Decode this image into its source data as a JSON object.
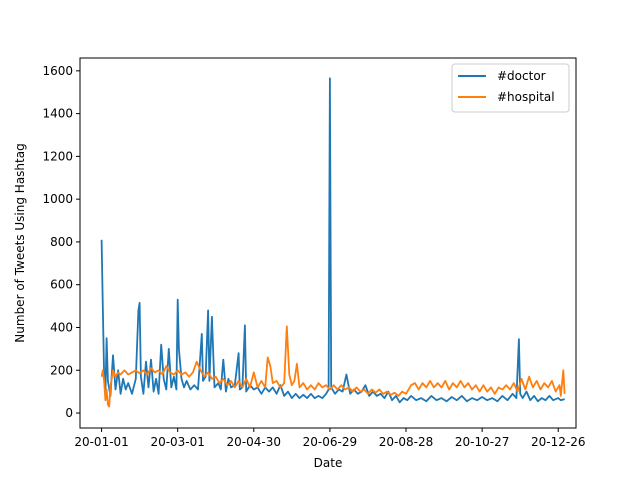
{
  "chart_data": {
    "type": "line",
    "title": "",
    "xlabel": "Date",
    "ylabel": "Number of Tweets Using Hashtag",
    "x_tick_labels": [
      "20-01-01",
      "20-03-01",
      "20-04-30",
      "20-06-29",
      "20-08-28",
      "20-10-27",
      "20-12-26"
    ],
    "y_ticks": [
      0,
      200,
      400,
      600,
      800,
      1000,
      1200,
      1400,
      1600
    ],
    "xlim": [
      "2019-12-15",
      "2021-01-09"
    ],
    "ylim": [
      -70,
      1660
    ],
    "grid": false,
    "legend": {
      "position": "top-right"
    },
    "series": [
      {
        "name": "#doctor",
        "color": "#1f77b4",
        "points": [
          [
            "2020-01-01",
            810
          ],
          [
            "2020-01-02",
            500
          ],
          [
            "2020-01-03",
            180
          ],
          [
            "2020-01-04",
            90
          ],
          [
            "2020-01-05",
            350
          ],
          [
            "2020-01-06",
            150
          ],
          [
            "2020-01-08",
            80
          ],
          [
            "2020-01-10",
            270
          ],
          [
            "2020-01-12",
            110
          ],
          [
            "2020-01-14",
            200
          ],
          [
            "2020-01-16",
            90
          ],
          [
            "2020-01-18",
            160
          ],
          [
            "2020-01-20",
            110
          ],
          [
            "2020-01-22",
            140
          ],
          [
            "2020-01-25",
            90
          ],
          [
            "2020-01-28",
            160
          ],
          [
            "2020-01-30",
            480
          ],
          [
            "2020-01-31",
            515
          ],
          [
            "2020-02-01",
            170
          ],
          [
            "2020-02-03",
            90
          ],
          [
            "2020-02-05",
            240
          ],
          [
            "2020-02-07",
            120
          ],
          [
            "2020-02-09",
            250
          ],
          [
            "2020-02-11",
            100
          ],
          [
            "2020-02-13",
            160
          ],
          [
            "2020-02-15",
            90
          ],
          [
            "2020-02-17",
            320
          ],
          [
            "2020-02-19",
            160
          ],
          [
            "2020-02-21",
            110
          ],
          [
            "2020-02-23",
            300
          ],
          [
            "2020-02-25",
            120
          ],
          [
            "2020-02-27",
            170
          ],
          [
            "2020-02-29",
            110
          ],
          [
            "2020-03-01",
            530
          ],
          [
            "2020-03-02",
            300
          ],
          [
            "2020-03-04",
            160
          ],
          [
            "2020-03-06",
            120
          ],
          [
            "2020-03-08",
            150
          ],
          [
            "2020-03-11",
            110
          ],
          [
            "2020-03-14",
            130
          ],
          [
            "2020-03-17",
            110
          ],
          [
            "2020-03-20",
            370
          ],
          [
            "2020-03-21",
            150
          ],
          [
            "2020-03-23",
            170
          ],
          [
            "2020-03-25",
            480
          ],
          [
            "2020-03-26",
            150
          ],
          [
            "2020-03-28",
            450
          ],
          [
            "2020-03-30",
            120
          ],
          [
            "2020-04-02",
            140
          ],
          [
            "2020-04-04",
            110
          ],
          [
            "2020-04-06",
            250
          ],
          [
            "2020-04-08",
            100
          ],
          [
            "2020-04-10",
            160
          ],
          [
            "2020-04-12",
            120
          ],
          [
            "2020-04-15",
            130
          ],
          [
            "2020-04-18",
            280
          ],
          [
            "2020-04-19",
            110
          ],
          [
            "2020-04-21",
            120
          ],
          [
            "2020-04-23",
            410
          ],
          [
            "2020-04-24",
            100
          ],
          [
            "2020-04-27",
            130
          ],
          [
            "2020-04-30",
            110
          ],
          [
            "2020-05-03",
            120
          ],
          [
            "2020-05-06",
            90
          ],
          [
            "2020-05-09",
            120
          ],
          [
            "2020-05-12",
            100
          ],
          [
            "2020-05-15",
            120
          ],
          [
            "2020-05-18",
            90
          ],
          [
            "2020-05-21",
            130
          ],
          [
            "2020-05-24",
            80
          ],
          [
            "2020-05-27",
            100
          ],
          [
            "2020-05-30",
            70
          ],
          [
            "2020-06-02",
            90
          ],
          [
            "2020-06-05",
            70
          ],
          [
            "2020-06-08",
            85
          ],
          [
            "2020-06-11",
            70
          ],
          [
            "2020-06-14",
            90
          ],
          [
            "2020-06-17",
            70
          ],
          [
            "2020-06-20",
            80
          ],
          [
            "2020-06-23",
            70
          ],
          [
            "2020-06-26",
            90
          ],
          [
            "2020-06-28",
            110
          ],
          [
            "2020-06-29",
            1565
          ],
          [
            "2020-06-30",
            120
          ],
          [
            "2020-07-03",
            90
          ],
          [
            "2020-07-06",
            110
          ],
          [
            "2020-07-09",
            100
          ],
          [
            "2020-07-12",
            180
          ],
          [
            "2020-07-15",
            90
          ],
          [
            "2020-07-18",
            110
          ],
          [
            "2020-07-21",
            90
          ],
          [
            "2020-07-24",
            100
          ],
          [
            "2020-07-27",
            130
          ],
          [
            "2020-07-30",
            80
          ],
          [
            "2020-08-02",
            100
          ],
          [
            "2020-08-05",
            80
          ],
          [
            "2020-08-08",
            90
          ],
          [
            "2020-08-11",
            70
          ],
          [
            "2020-08-14",
            100
          ],
          [
            "2020-08-17",
            60
          ],
          [
            "2020-08-20",
            80
          ],
          [
            "2020-08-23",
            50
          ],
          [
            "2020-08-26",
            70
          ],
          [
            "2020-08-29",
            60
          ],
          [
            "2020-09-01",
            80
          ],
          [
            "2020-09-05",
            60
          ],
          [
            "2020-09-09",
            70
          ],
          [
            "2020-09-13",
            55
          ],
          [
            "2020-09-17",
            80
          ],
          [
            "2020-09-21",
            60
          ],
          [
            "2020-09-25",
            70
          ],
          [
            "2020-09-29",
            55
          ],
          [
            "2020-10-03",
            75
          ],
          [
            "2020-10-07",
            60
          ],
          [
            "2020-10-11",
            80
          ],
          [
            "2020-10-15",
            55
          ],
          [
            "2020-10-19",
            70
          ],
          [
            "2020-10-23",
            60
          ],
          [
            "2020-10-27",
            75
          ],
          [
            "2020-10-31",
            60
          ],
          [
            "2020-11-04",
            70
          ],
          [
            "2020-11-08",
            55
          ],
          [
            "2020-11-12",
            80
          ],
          [
            "2020-11-16",
            60
          ],
          [
            "2020-11-20",
            90
          ],
          [
            "2020-11-23",
            70
          ],
          [
            "2020-11-25",
            345
          ],
          [
            "2020-11-26",
            90
          ],
          [
            "2020-11-28",
            70
          ],
          [
            "2020-12-01",
            100
          ],
          [
            "2020-12-04",
            60
          ],
          [
            "2020-12-07",
            80
          ],
          [
            "2020-12-10",
            55
          ],
          [
            "2020-12-13",
            70
          ],
          [
            "2020-12-16",
            60
          ],
          [
            "2020-12-19",
            80
          ],
          [
            "2020-12-22",
            60
          ],
          [
            "2020-12-26",
            70
          ],
          [
            "2020-12-28",
            60
          ],
          [
            "2020-12-31",
            65
          ]
        ]
      },
      {
        "name": "#hospital",
        "color": "#ff7f0e",
        "points": [
          [
            "2020-01-01",
            170
          ],
          [
            "2020-01-02",
            200
          ],
          [
            "2020-01-03",
            150
          ],
          [
            "2020-01-04",
            60
          ],
          [
            "2020-01-05",
            110
          ],
          [
            "2020-01-06",
            40
          ],
          [
            "2020-01-07",
            30
          ],
          [
            "2020-01-08",
            120
          ],
          [
            "2020-01-10",
            200
          ],
          [
            "2020-01-12",
            170
          ],
          [
            "2020-01-14",
            190
          ],
          [
            "2020-01-16",
            180
          ],
          [
            "2020-01-19",
            200
          ],
          [
            "2020-01-22",
            180
          ],
          [
            "2020-01-25",
            190
          ],
          [
            "2020-01-28",
            200
          ],
          [
            "2020-01-31",
            185
          ],
          [
            "2020-02-03",
            200
          ],
          [
            "2020-02-06",
            180
          ],
          [
            "2020-02-09",
            210
          ],
          [
            "2020-02-12",
            190
          ],
          [
            "2020-02-15",
            200
          ],
          [
            "2020-02-18",
            180
          ],
          [
            "2020-02-21",
            220
          ],
          [
            "2020-02-24",
            190
          ],
          [
            "2020-02-27",
            180
          ],
          [
            "2020-03-01",
            200
          ],
          [
            "2020-03-04",
            180
          ],
          [
            "2020-03-07",
            190
          ],
          [
            "2020-03-10",
            170
          ],
          [
            "2020-03-13",
            190
          ],
          [
            "2020-03-16",
            240
          ],
          [
            "2020-03-19",
            200
          ],
          [
            "2020-03-22",
            170
          ],
          [
            "2020-03-25",
            190
          ],
          [
            "2020-03-28",
            160
          ],
          [
            "2020-03-31",
            170
          ],
          [
            "2020-04-03",
            140
          ],
          [
            "2020-04-06",
            160
          ],
          [
            "2020-04-09",
            130
          ],
          [
            "2020-04-12",
            150
          ],
          [
            "2020-04-15",
            120
          ],
          [
            "2020-04-18",
            150
          ],
          [
            "2020-04-21",
            120
          ],
          [
            "2020-04-24",
            160
          ],
          [
            "2020-04-27",
            120
          ],
          [
            "2020-04-30",
            190
          ],
          [
            "2020-05-03",
            120
          ],
          [
            "2020-05-06",
            150
          ],
          [
            "2020-05-09",
            120
          ],
          [
            "2020-05-11",
            260
          ],
          [
            "2020-05-13",
            220
          ],
          [
            "2020-05-15",
            140
          ],
          [
            "2020-05-18",
            150
          ],
          [
            "2020-05-21",
            120
          ],
          [
            "2020-05-24",
            140
          ],
          [
            "2020-05-26",
            405
          ],
          [
            "2020-05-28",
            180
          ],
          [
            "2020-05-30",
            130
          ],
          [
            "2020-06-01",
            150
          ],
          [
            "2020-06-03",
            230
          ],
          [
            "2020-06-05",
            120
          ],
          [
            "2020-06-08",
            140
          ],
          [
            "2020-06-11",
            110
          ],
          [
            "2020-06-14",
            130
          ],
          [
            "2020-06-17",
            110
          ],
          [
            "2020-06-20",
            140
          ],
          [
            "2020-06-23",
            120
          ],
          [
            "2020-06-26",
            130
          ],
          [
            "2020-06-29",
            110
          ],
          [
            "2020-07-02",
            130
          ],
          [
            "2020-07-05",
            110
          ],
          [
            "2020-07-08",
            130
          ],
          [
            "2020-07-11",
            110
          ],
          [
            "2020-07-14",
            120
          ],
          [
            "2020-07-17",
            100
          ],
          [
            "2020-07-20",
            120
          ],
          [
            "2020-07-23",
            100
          ],
          [
            "2020-07-26",
            110
          ],
          [
            "2020-07-29",
            90
          ],
          [
            "2020-08-01",
            110
          ],
          [
            "2020-08-04",
            95
          ],
          [
            "2020-08-07",
            110
          ],
          [
            "2020-08-10",
            90
          ],
          [
            "2020-08-13",
            100
          ],
          [
            "2020-08-16",
            85
          ],
          [
            "2020-08-19",
            95
          ],
          [
            "2020-08-22",
            80
          ],
          [
            "2020-08-25",
            100
          ],
          [
            "2020-08-28",
            90
          ],
          [
            "2020-09-01",
            130
          ],
          [
            "2020-09-04",
            140
          ],
          [
            "2020-09-07",
            110
          ],
          [
            "2020-09-10",
            140
          ],
          [
            "2020-09-13",
            120
          ],
          [
            "2020-09-16",
            150
          ],
          [
            "2020-09-19",
            120
          ],
          [
            "2020-09-22",
            140
          ],
          [
            "2020-09-25",
            120
          ],
          [
            "2020-09-28",
            150
          ],
          [
            "2020-10-01",
            110
          ],
          [
            "2020-10-04",
            140
          ],
          [
            "2020-10-07",
            120
          ],
          [
            "2020-10-10",
            150
          ],
          [
            "2020-10-13",
            120
          ],
          [
            "2020-10-16",
            140
          ],
          [
            "2020-10-19",
            110
          ],
          [
            "2020-10-22",
            130
          ],
          [
            "2020-10-25",
            100
          ],
          [
            "2020-10-28",
            130
          ],
          [
            "2020-10-31",
            100
          ],
          [
            "2020-11-03",
            120
          ],
          [
            "2020-11-06",
            90
          ],
          [
            "2020-11-09",
            120
          ],
          [
            "2020-11-12",
            110
          ],
          [
            "2020-11-15",
            130
          ],
          [
            "2020-11-18",
            110
          ],
          [
            "2020-11-21",
            140
          ],
          [
            "2020-11-24",
            100
          ],
          [
            "2020-11-27",
            160
          ],
          [
            "2020-11-30",
            110
          ],
          [
            "2020-12-03",
            170
          ],
          [
            "2020-12-06",
            120
          ],
          [
            "2020-12-09",
            150
          ],
          [
            "2020-12-12",
            110
          ],
          [
            "2020-12-15",
            140
          ],
          [
            "2020-12-18",
            120
          ],
          [
            "2020-12-21",
            150
          ],
          [
            "2020-12-24",
            100
          ],
          [
            "2020-12-27",
            130
          ],
          [
            "2020-12-28",
            80
          ],
          [
            "2020-12-30",
            200
          ],
          [
            "2020-12-31",
            90
          ]
        ]
      }
    ]
  }
}
